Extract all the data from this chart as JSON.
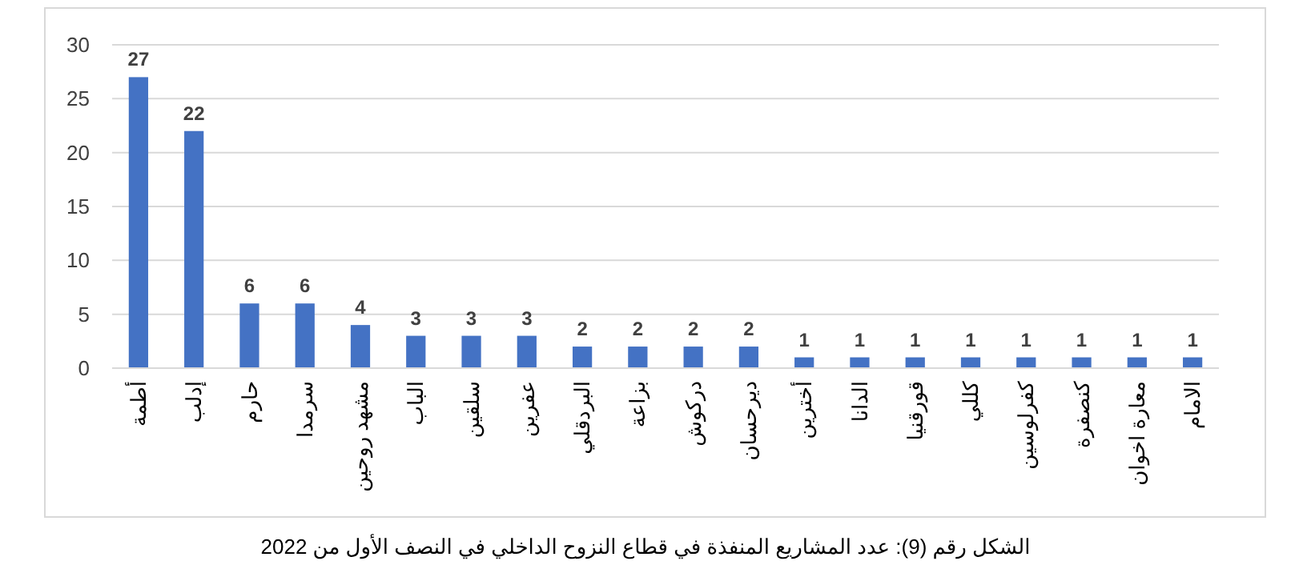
{
  "chart_data": {
    "type": "bar",
    "categories": [
      "أطمة",
      "إدلب",
      "حارم",
      "سرمدا",
      "مشهد روحين",
      "الباب",
      "سلقين",
      "عفرين",
      "البردقلي",
      "بزاعة",
      "دركوش",
      "ديرحسان",
      "أخترين",
      "الدانا",
      "قورقنيا",
      "كللي",
      "كفرلوسين",
      "كنصفرة",
      "معارة اخوان",
      "الامام"
    ],
    "values": [
      27,
      22,
      6,
      6,
      4,
      3,
      3,
      3,
      2,
      2,
      2,
      2,
      1,
      1,
      1,
      1,
      1,
      1,
      1,
      1
    ],
    "color": "#4472c4",
    "ylim": [
      0,
      30
    ],
    "yticks": [
      0,
      5,
      10,
      15,
      20,
      25,
      30
    ],
    "grid": "y",
    "data_labels": true,
    "annotations": [
      "الشكل رقم (9): عدد المشاريع المنفذة في قطاع النزوح الداخلي في النصف الأول من 2022"
    ]
  }
}
